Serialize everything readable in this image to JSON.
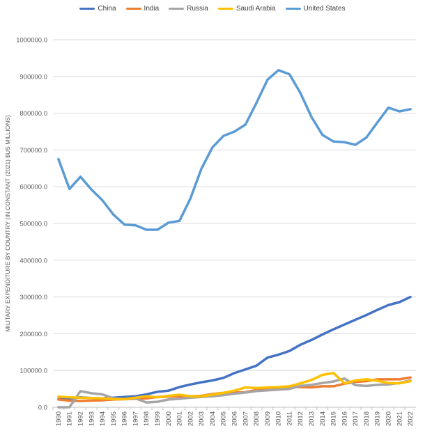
{
  "chart_data": {
    "type": "line",
    "title": "",
    "xlabel": "",
    "ylabel": "MILITARY EXPENDITURE BY COUNTRY (IN CONSTANT (2021) $US MILLIONS)",
    "ylim": [
      0,
      1000000
    ],
    "yticks": [
      "0.0",
      "100000.0",
      "200000.0",
      "300000.0",
      "400000.0",
      "500000.0",
      "600000.0",
      "700000.0",
      "800000.0",
      "900000.0",
      "1000000.0"
    ],
    "ytick_values": [
      0,
      100000,
      200000,
      300000,
      400000,
      500000,
      600000,
      700000,
      800000,
      900000,
      1000000
    ],
    "grid": true,
    "legend_position": "top",
    "x": [
      "1990",
      "1991",
      "1992",
      "1993",
      "1994",
      "1995",
      "1996",
      "1997",
      "1998",
      "1999",
      "2000",
      "2001",
      "2002",
      "2003",
      "2004",
      "2005",
      "2006",
      "2007",
      "2008",
      "2009",
      "2010",
      "2011",
      "2012",
      "2013",
      "2014",
      "2015",
      "2016",
      "2017",
      "2018",
      "2019",
      "2020",
      "2021",
      "2022"
    ],
    "series": [
      {
        "name": "China",
        "color": "#4472C4",
        "values": [
          22000,
          24000,
          27000,
          25000,
          24000,
          26000,
          28000,
          30000,
          35000,
          42000,
          45000,
          55000,
          62000,
          68000,
          73000,
          80000,
          93000,
          103000,
          113000,
          135000,
          143000,
          153000,
          170000,
          183000,
          198000,
          212000,
          225000,
          238000,
          251000,
          265000,
          278000,
          286000,
          300000
        ]
      },
      {
        "name": "India",
        "color": "#ED7D31",
        "values": [
          21000,
          18000,
          17000,
          18000,
          19000,
          21000,
          22000,
          23000,
          24000,
          28000,
          29000,
          30000,
          30000,
          31000,
          36000,
          39000,
          40000,
          41000,
          47000,
          51000,
          53000,
          55000,
          55000,
          54000,
          57000,
          57000,
          64000,
          69000,
          71000,
          76000,
          76000,
          76000,
          81000
        ]
      },
      {
        "name": "Russia",
        "color": "#A5A5A5",
        "values": [
          0,
          0,
          44000,
          38000,
          35000,
          24000,
          22000,
          24000,
          13000,
          15000,
          21000,
          23000,
          26000,
          28000,
          30000,
          33000,
          37000,
          40000,
          44000,
          46000,
          48000,
          50000,
          58000,
          61000,
          66000,
          70000,
          78000,
          60000,
          58000,
          61000,
          62000,
          66000,
          73000
        ]
      },
      {
        "name": "Saudi Arabia",
        "color": "#FFC000",
        "values": [
          29000,
          27000,
          26000,
          25000,
          24000,
          22000,
          22000,
          26000,
          30000,
          27000,
          31000,
          34000,
          30000,
          30000,
          34000,
          39000,
          45000,
          54000,
          52000,
          54000,
          55000,
          57000,
          65000,
          74000,
          88000,
          93000,
          65000,
          73000,
          76000,
          72000,
          66000,
          65000,
          71000
        ]
      },
      {
        "name": "United States",
        "color": "#5B9BD5",
        "values": [
          675000,
          594000,
          627000,
          592000,
          563000,
          524000,
          497000,
          495000,
          483000,
          483000,
          502000,
          507000,
          568000,
          649000,
          707000,
          738000,
          750000,
          769000,
          828000,
          891000,
          917000,
          906000,
          855000,
          790000,
          741000,
          723000,
          721000,
          714000,
          734000,
          775000,
          815000,
          805000,
          811000
        ]
      }
    ]
  }
}
